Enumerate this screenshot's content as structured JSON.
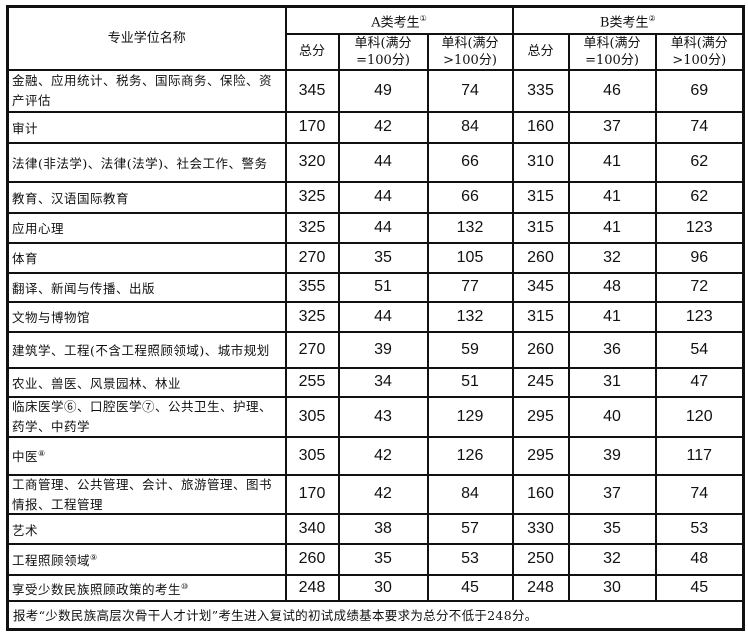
{
  "header": {
    "name_col": "专业学位名称",
    "group_a": "A类考生",
    "group_a_note": "①",
    "group_b": "B类考生",
    "group_b_note": "②",
    "sub": [
      "总分",
      "单科(满分=100分)",
      "单科(满分>100分)"
    ]
  },
  "rows": [
    {
      "name": "金融、应用统计、税务、国际商务、保险、资产评估",
      "note": "",
      "a": [
        "345",
        "49",
        "74"
      ],
      "b": [
        "335",
        "46",
        "69"
      ]
    },
    {
      "name": "审计",
      "note": "",
      "a": [
        "170",
        "42",
        "84"
      ],
      "b": [
        "160",
        "37",
        "74"
      ]
    },
    {
      "name": "法律(非法学)、法律(法学)、社会工作、警务",
      "note": "",
      "a": [
        "320",
        "44",
        "66"
      ],
      "b": [
        "310",
        "41",
        "62"
      ]
    },
    {
      "name": "教育、汉语国际教育",
      "note": "",
      "a": [
        "325",
        "44",
        "66"
      ],
      "b": [
        "315",
        "41",
        "62"
      ]
    },
    {
      "name": "应用心理",
      "note": "",
      "a": [
        "325",
        "44",
        "132"
      ],
      "b": [
        "315",
        "41",
        "123"
      ]
    },
    {
      "name": "体育",
      "note": "",
      "a": [
        "270",
        "35",
        "105"
      ],
      "b": [
        "260",
        "32",
        "96"
      ]
    },
    {
      "name": "翻译、新闻与传播、出版",
      "note": "",
      "a": [
        "355",
        "51",
        "77"
      ],
      "b": [
        "345",
        "48",
        "72"
      ]
    },
    {
      "name": "文物与博物馆",
      "note": "",
      "a": [
        "325",
        "44",
        "132"
      ],
      "b": [
        "315",
        "41",
        "123"
      ]
    },
    {
      "name": "建筑学、工程(不含工程照顾领域)、城市规划",
      "note": "",
      "a": [
        "270",
        "39",
        "59"
      ],
      "b": [
        "260",
        "36",
        "54"
      ]
    },
    {
      "name": "农业、兽医、风景园林、林业",
      "note": "",
      "a": [
        "255",
        "34",
        "51"
      ],
      "b": [
        "245",
        "31",
        "47"
      ]
    },
    {
      "name": "临床医学⑥、口腔医学⑦、公共卫生、护理、药学、中药学",
      "note": "",
      "a": [
        "305",
        "43",
        "129"
      ],
      "b": [
        "295",
        "40",
        "120"
      ]
    },
    {
      "name": "中医",
      "note": "⑧",
      "a": [
        "305",
        "42",
        "126"
      ],
      "b": [
        "295",
        "39",
        "117"
      ]
    },
    {
      "name": "工商管理、公共管理、会计、旅游管理、图书情报、工程管理",
      "note": "",
      "a": [
        "170",
        "42",
        "84"
      ],
      "b": [
        "160",
        "37",
        "74"
      ]
    },
    {
      "name": "艺术",
      "note": "",
      "a": [
        "340",
        "38",
        "57"
      ],
      "b": [
        "330",
        "35",
        "53"
      ]
    },
    {
      "name": "工程照顾领域",
      "note": "⑨",
      "a": [
        "260",
        "35",
        "53"
      ],
      "b": [
        "250",
        "32",
        "48"
      ]
    },
    {
      "name": "享受少数民族照顾政策的考生",
      "note": "⑩",
      "a": [
        "248",
        "30",
        "45"
      ],
      "b": [
        "248",
        "30",
        "45"
      ]
    }
  ],
  "footer": "报考“少数民族高层次骨干人才计划”考生进入复试的初试成绩基本要求为总分不低于248分。"
}
